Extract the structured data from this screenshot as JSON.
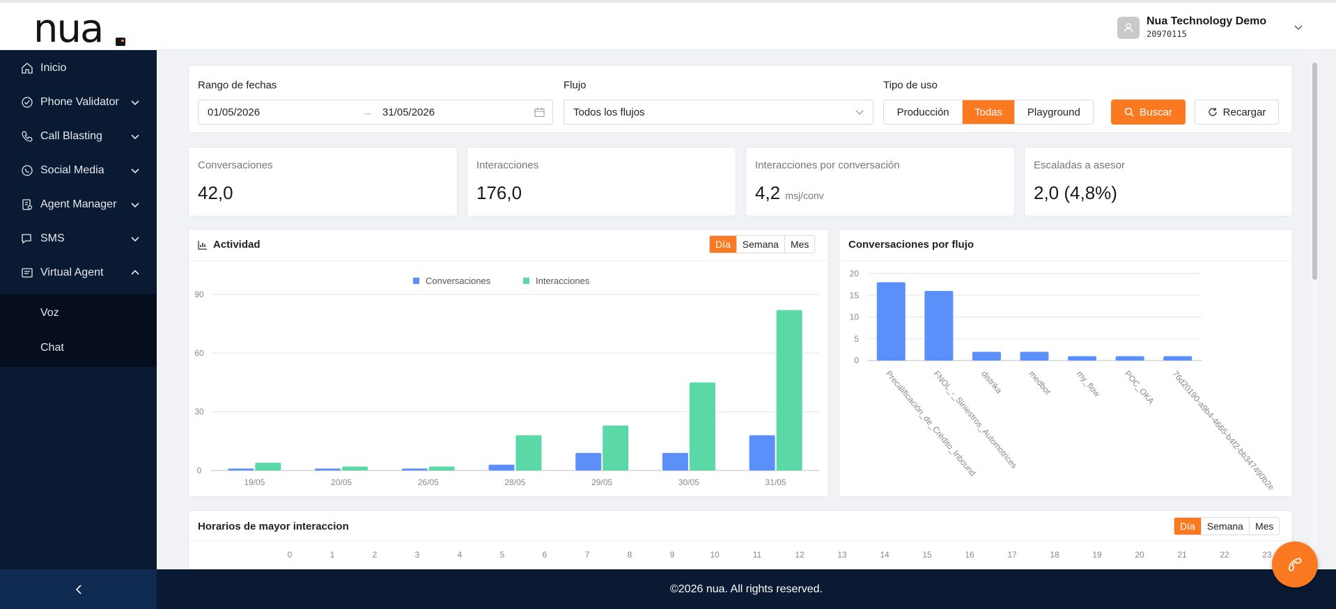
{
  "brand": {
    "logo_text": "nua"
  },
  "user": {
    "name": "Nua Technology Demo",
    "id": "20970115"
  },
  "sidebar": {
    "items": [
      {
        "label": "Inicio",
        "icon": "home-icon"
      },
      {
        "label": "Phone Validator",
        "icon": "check-circle-icon"
      },
      {
        "label": "Call Blasting",
        "icon": "phone-icon"
      },
      {
        "label": "Social Media",
        "icon": "whatsapp-icon"
      },
      {
        "label": "Agent Manager",
        "icon": "agent-icon"
      },
      {
        "label": "SMS",
        "icon": "chat-bubble-icon"
      },
      {
        "label": "Virtual Agent",
        "icon": "robot-icon"
      }
    ],
    "submenu": [
      {
        "label": "Voz"
      },
      {
        "label": "Chat"
      }
    ]
  },
  "filters": {
    "date_label": "Rango de fechas",
    "date_start": "01/05/2026",
    "date_end": "31/05/2026",
    "flow_label": "Flujo",
    "flow_value": "Todos los flujos",
    "usage_label": "Tipo de uso",
    "usage_options": [
      "Producción",
      "Todas",
      "Playground"
    ],
    "usage_selected": "Todas",
    "search_label": "Buscar",
    "reload_label": "Recargar"
  },
  "stats": [
    {
      "title": "Conversaciones",
      "value": "42,0",
      "unit": ""
    },
    {
      "title": "Interacciones",
      "value": "176,0",
      "unit": ""
    },
    {
      "title": "Interacciones por conversación",
      "value": "4,2",
      "unit": "msj/conv"
    },
    {
      "title": "Escaladas a asesor",
      "value": "2,0 (4,8%)",
      "unit": ""
    }
  ],
  "activity": {
    "title": "Actividad",
    "periods": [
      "Día",
      "Semana",
      "Mes"
    ],
    "selected": "Día"
  },
  "flows_panel": {
    "title": "Conversaciones por flujo"
  },
  "hours_panel": {
    "title": "Horarios de mayor interaccion",
    "periods": [
      "Día",
      "Semana",
      "Mes"
    ],
    "selected": "Día",
    "hours": [
      "0",
      "1",
      "2",
      "3",
      "4",
      "5",
      "6",
      "7",
      "8",
      "9",
      "10",
      "11",
      "12",
      "13",
      "14",
      "15",
      "16",
      "17",
      "18",
      "19",
      "20",
      "21",
      "22",
      "23"
    ]
  },
  "footer": {
    "text": "©2026 nua. All rights reserved."
  },
  "colors": {
    "accent": "#fa7921",
    "sidebar": "#0b1a33",
    "series_conv": "#5b8ff9",
    "series_int": "#5ad8a6"
  },
  "chart_data": [
    {
      "type": "bar",
      "title": "Actividad",
      "categories": [
        "19/05",
        "20/05",
        "26/05",
        "28/05",
        "29/05",
        "30/05",
        "31/05"
      ],
      "series": [
        {
          "name": "Conversaciones",
          "values": [
            1,
            1,
            1,
            3,
            9,
            9,
            18
          ]
        },
        {
          "name": "Interacciones",
          "values": [
            4,
            2,
            2,
            18,
            23,
            45,
            82
          ]
        }
      ],
      "yticks": [
        0,
        30,
        60,
        90
      ],
      "ylim": [
        0,
        90
      ],
      "legend": "top"
    },
    {
      "type": "bar",
      "title": "Conversaciones por flujo",
      "categories": [
        "Precalificación_de_Crédito_Inbound",
        "FNOL_-_Siniestros_Automotrices",
        "distrika",
        "medbot",
        "my_flow",
        "POC_OKA",
        "76d20190-a9b4-4665-b4f2-bb347490b2e"
      ],
      "values": [
        18,
        16,
        2,
        2,
        1,
        1,
        1
      ],
      "yticks": [
        0,
        5,
        10,
        15,
        20
      ],
      "ylim": [
        0,
        20
      ]
    }
  ]
}
